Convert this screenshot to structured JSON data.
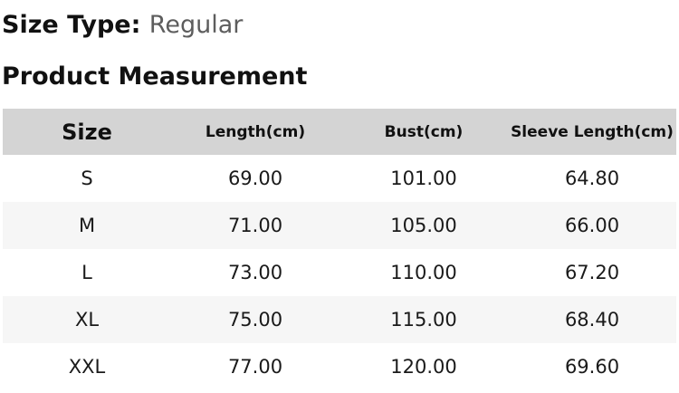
{
  "header": {
    "size_type_label": "Size Type:",
    "size_type_value": "Regular",
    "section_title": "Product Measurement"
  },
  "table": {
    "columns": [
      "Size",
      "Length(cm)",
      "Bust(cm)",
      "Sleeve Length(cm)"
    ],
    "rows": [
      [
        "S",
        "69.00",
        "101.00",
        "64.80"
      ],
      [
        "M",
        "71.00",
        "105.00",
        "66.00"
      ],
      [
        "L",
        "73.00",
        "110.00",
        "67.20"
      ],
      [
        "XL",
        "75.00",
        "115.00",
        "68.40"
      ],
      [
        "XXL",
        "77.00",
        "120.00",
        "69.60"
      ]
    ]
  },
  "colors": {
    "table_header_bg": "#d4d4d4",
    "row_stripe_bg": "#f6f6f6",
    "muted_text": "#5d5d5d",
    "text": "#111111"
  }
}
